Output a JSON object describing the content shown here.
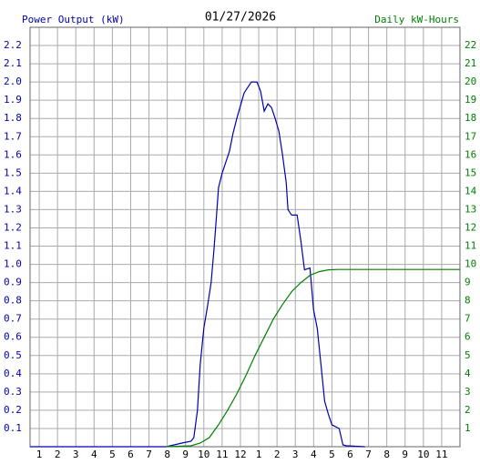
{
  "chart_data": {
    "type": "line",
    "title": "01/27/2026",
    "ylabel": "Power Output (kW)",
    "y2label": "Daily kW-Hours",
    "xlim": [
      0.5,
      24
    ],
    "xticks": [
      1,
      2,
      3,
      4,
      5,
      6,
      7,
      8,
      9,
      10,
      11,
      12,
      {
        "value": 13,
        "label": "1"
      },
      {
        "value": 14,
        "label": "2"
      },
      {
        "value": 15,
        "label": "3"
      },
      {
        "value": 16,
        "label": "4"
      },
      {
        "value": 17,
        "label": "5"
      },
      {
        "value": 18,
        "label": "6"
      },
      {
        "value": 19,
        "label": "7"
      },
      {
        "value": 20,
        "label": "8"
      },
      {
        "value": 21,
        "label": "9"
      },
      {
        "value": 22,
        "label": "10"
      },
      {
        "value": 23,
        "label": "11"
      }
    ],
    "ylim": [
      0,
      2.3
    ],
    "yticks": [
      0.1,
      0.2,
      0.3,
      0.4,
      0.5,
      0.6,
      0.7,
      0.8,
      0.9,
      {
        "value": 1,
        "label": "1.0"
      },
      1.1,
      1.2,
      1.3,
      1.4,
      1.5,
      1.6,
      1.7,
      1.8,
      1.9,
      {
        "value": 2,
        "label": "2.0"
      },
      2.1,
      2.2
    ],
    "y2lim": [
      0,
      23
    ],
    "y2ticks": [
      1,
      2,
      3,
      4,
      5,
      6,
      7,
      8,
      9,
      10,
      11,
      12,
      13,
      14,
      15,
      16,
      17,
      18,
      19,
      20,
      21,
      22
    ],
    "grid": true,
    "series": [
      {
        "name": "Power Output (kW)",
        "color": "#0000b0",
        "x": [
          0.5,
          7.95,
          8.8,
          9.3,
          9.45,
          9.65,
          9.8,
          10.0,
          10.2,
          10.4,
          10.55,
          10.7,
          10.8,
          11.0,
          11.2,
          11.4,
          11.6,
          11.8,
          12.0,
          12.2,
          12.4,
          12.6,
          12.9,
          13.1,
          13.3,
          13.5,
          13.7,
          13.9,
          14.1,
          14.3,
          14.5,
          14.6,
          14.8,
          15.1,
          15.3,
          15.5,
          15.8,
          16.0,
          16.2,
          16.4,
          16.6,
          16.8,
          17.0,
          17.4,
          17.6,
          17.8,
          18.8
        ],
        "values": [
          0,
          0,
          0.02,
          0.03,
          0.05,
          0.2,
          0.45,
          0.65,
          0.77,
          0.9,
          1.08,
          1.28,
          1.42,
          1.5,
          1.56,
          1.62,
          1.72,
          1.8,
          1.87,
          1.94,
          1.97,
          2.0,
          2.0,
          1.95,
          1.84,
          1.88,
          1.86,
          1.8,
          1.73,
          1.6,
          1.45,
          1.3,
          1.27,
          1.27,
          1.13,
          0.97,
          0.98,
          0.75,
          0.65,
          0.45,
          0.25,
          0.18,
          0.12,
          0.1,
          0.01,
          0.005,
          0
        ]
      },
      {
        "name": "Daily kW-Hours",
        "color": "#008000",
        "axis": "y2",
        "x": [
          7.95,
          9.3,
          9.8,
          10.3,
          10.8,
          11.3,
          11.8,
          12.3,
          12.8,
          13.3,
          13.8,
          14.3,
          14.8,
          15.3,
          15.8,
          16.3,
          16.8,
          17.3,
          24
        ],
        "values": [
          0,
          0.05,
          0.2,
          0.5,
          1.2,
          2.0,
          2.9,
          3.9,
          5.0,
          6.0,
          7.0,
          7.8,
          8.5,
          9.0,
          9.4,
          9.6,
          9.7,
          9.72,
          9.72
        ]
      }
    ]
  }
}
